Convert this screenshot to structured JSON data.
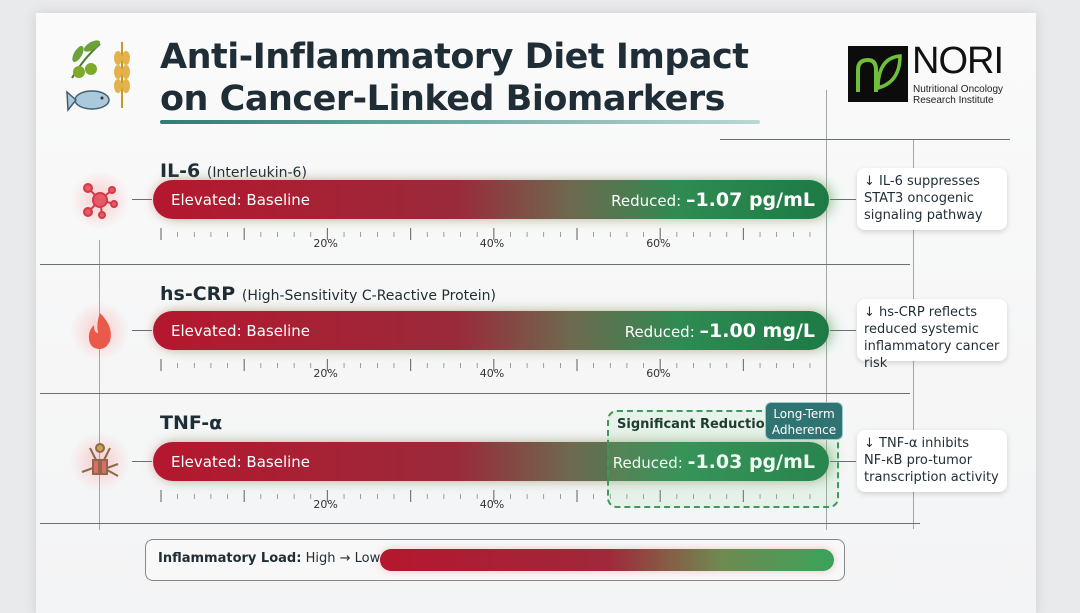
{
  "header": {
    "title_line1": "Anti-Inflammatory Diet Impact",
    "title_line2": "on Cancer-Linked Biomarkers",
    "logo_name": "NORI",
    "logo_sub1": "Nutritional Oncology",
    "logo_sub2": "Research Institute"
  },
  "colors": {
    "elevated": "#b5172e",
    "reduced": "#1d7a45",
    "title": "#1f2d36",
    "accent": "#2d7f73"
  },
  "chart_data": {
    "type": "bar",
    "categories": [
      "IL-6",
      "hs-CRP",
      "TNF-α"
    ],
    "xlim_percent": [
      0,
      80
    ],
    "tick_labels": [
      "20%",
      "40%",
      "60%"
    ],
    "rows": [
      {
        "name": "IL-6",
        "full": "(Interleukin-6)",
        "icon": "molecule-icon",
        "start_label": "Elevated:",
        "start_value": "Baseline",
        "end_label": "Reduced:",
        "end_value": "–1.07 pg/mL",
        "value": -1.07,
        "unit": "pg/mL",
        "note_line1": "↓ IL-6 suppresses",
        "note_line2": "STAT3 oncogenic",
        "note_line3": "signaling pathway",
        "ticks": [
          "20%",
          "40%",
          "60%"
        ]
      },
      {
        "name": "hs-CRP",
        "full": "(High-Sensitivity C-Reactive Protein)",
        "icon": "flame-icon",
        "start_label": "Elevated:",
        "start_value": "Baseline",
        "end_label": "Reduced:",
        "end_value": "–1.00 mg/L",
        "value": -1.0,
        "unit": "mg/L",
        "note_line1": "↓ hs-CRP reflects",
        "note_line2": "reduced systemic",
        "note_line3": "inflammatory cancer risk",
        "ticks": [
          "20%",
          "40%",
          "60%"
        ]
      },
      {
        "name": "TNF-α",
        "full": "",
        "icon": "receptor-icon",
        "start_label": "Elevated:",
        "start_value": "Baseline",
        "end_label": "Reduced:",
        "end_value": "-1.03 pg/mL",
        "value": -1.03,
        "unit": "pg/mL",
        "note_line1": "↓ TNF-α inhibits",
        "note_line2": "NF-κB pro-tumor",
        "note_line3": "transcription activity",
        "ticks": [
          "20%",
          "40%"
        ]
      }
    ],
    "annotations": {
      "significant": "Significant Reduction",
      "badge": "Long-Term Adherence"
    }
  },
  "legend": {
    "label": "Inflammatory Load:",
    "value": "High → Low"
  }
}
